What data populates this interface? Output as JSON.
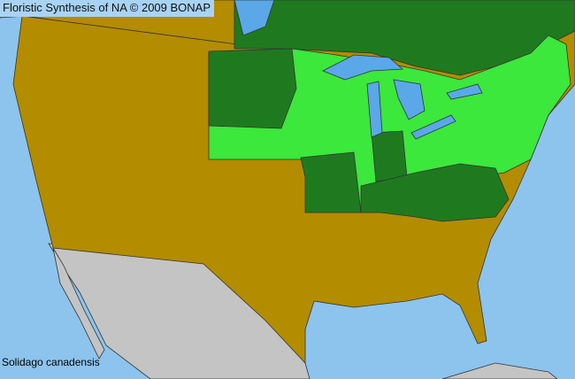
{
  "title": "Floristic Synthesis of NA © 2009 BONAP",
  "species": "Solidago canadensis",
  "colors": {
    "ocean": "#8cc4ee",
    "not_present": "#b38c00",
    "present_state": "#1f7a1f",
    "present_county": "#3be83b",
    "outside_area": "#c4c4c4",
    "lakes": "#5aa8e8",
    "borders": "#333333"
  }
}
